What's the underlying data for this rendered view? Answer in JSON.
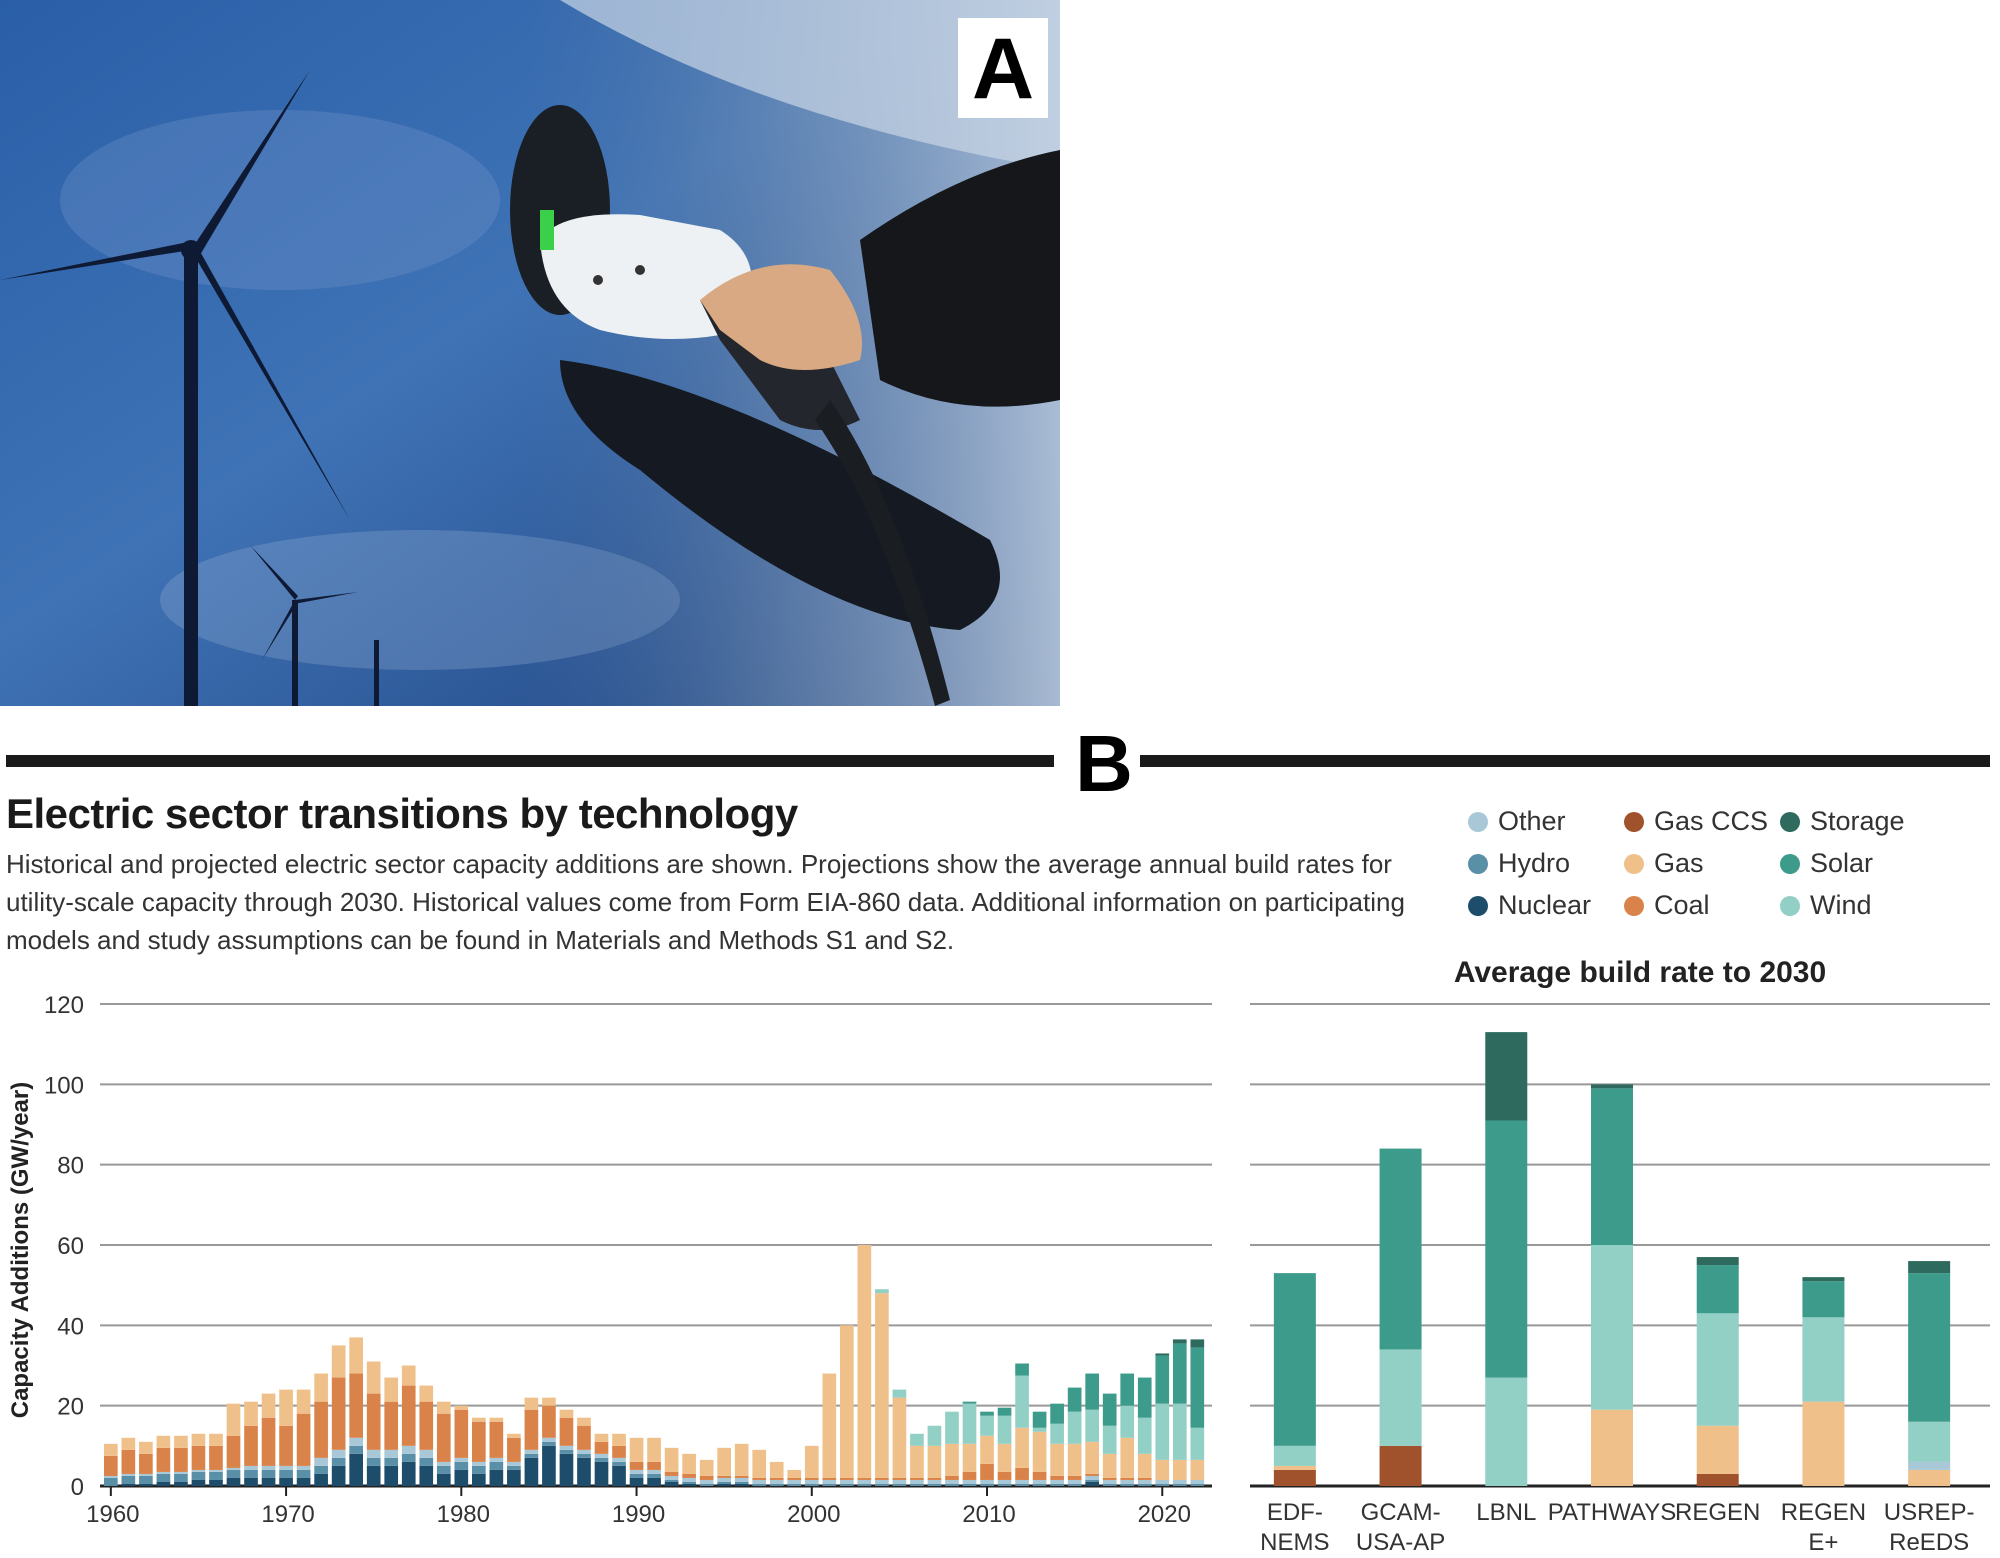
{
  "panel_a": {
    "label": "A",
    "description_icon": "ev-charging-wind-turbines-photo"
  },
  "panel_b": {
    "label": "B",
    "title": "Electric sector transitions by technology",
    "subtitle": "Historical and projected electric sector capacity additions are shown. Projections show the average annual build rates for utility-scale capacity through 2030. Historical values come from Form EIA-860 data. Additional information on participating models and study assumptions can be found in Materials and Methods S1 and S2.",
    "legend": [
      {
        "name": "Other",
        "color": "#a8c8d8"
      },
      {
        "name": "Gas CCS",
        "color": "#a0522d"
      },
      {
        "name": "Storage",
        "color": "#2e6b5e"
      },
      {
        "name": "Hydro",
        "color": "#5a8fa8"
      },
      {
        "name": "Gas",
        "color": "#f0c08a"
      },
      {
        "name": "Solar",
        "color": "#3d9b8c"
      },
      {
        "name": "Nuclear",
        "color": "#1e4d6b"
      },
      {
        "name": "Coal",
        "color": "#d9834a"
      },
      {
        "name": "Wind",
        "color": "#92cfc5"
      }
    ]
  },
  "chart_data": [
    {
      "type": "bar",
      "stacked": true,
      "title": "",
      "xlabel": "",
      "ylabel": "Capacity Additions (GW/year)",
      "ylim": [
        0,
        120
      ],
      "yticks": [
        0,
        20,
        40,
        60,
        80,
        100,
        120
      ],
      "xticks": [
        "1960",
        "1970",
        "1980",
        "1990",
        "2000",
        "2010",
        "2020"
      ],
      "x": [
        1960,
        1961,
        1962,
        1963,
        1964,
        1965,
        1966,
        1967,
        1968,
        1969,
        1970,
        1971,
        1972,
        1973,
        1974,
        1975,
        1976,
        1977,
        1978,
        1979,
        1980,
        1981,
        1982,
        1983,
        1984,
        1985,
        1986,
        1987,
        1988,
        1989,
        1990,
        1991,
        1992,
        1993,
        1994,
        1995,
        1996,
        1997,
        1998,
        1999,
        2000,
        2001,
        2002,
        2003,
        2004,
        2005,
        2006,
        2007,
        2008,
        2009,
        2010,
        2011,
        2012,
        2013,
        2014,
        2015,
        2016,
        2017,
        2018,
        2019,
        2020,
        2021,
        2022
      ],
      "series": [
        {
          "name": "Nuclear",
          "values": [
            0,
            0.5,
            0.5,
            1,
            1,
            1.5,
            1.5,
            2,
            2,
            2,
            2,
            2,
            3,
            5,
            8,
            5,
            5,
            6,
            5,
            3,
            4,
            3,
            4,
            4,
            7,
            10,
            8,
            7,
            6,
            5,
            2,
            2,
            1,
            0.5,
            0,
            0.5,
            0.5,
            0,
            0,
            0,
            0,
            0,
            0,
            0,
            0,
            0,
            0,
            0,
            0,
            0,
            0,
            0,
            0,
            0,
            0,
            0,
            1,
            0,
            0,
            0,
            0,
            0,
            0
          ]
        },
        {
          "name": "Hydro",
          "values": [
            2,
            2,
            2,
            2,
            2,
            2,
            2,
            2,
            2,
            2,
            2,
            2,
            2,
            2,
            2,
            2,
            2,
            2,
            2,
            2,
            2,
            2,
            2,
            1,
            1,
            1,
            1,
            1,
            1,
            1,
            1,
            1,
            0.5,
            0.5,
            0.5,
            0.5,
            0.5,
            0.5,
            0.5,
            0.5,
            0.5,
            0.5,
            0.5,
            0.5,
            0.5,
            0.5,
            0.5,
            0.5,
            0.5,
            0.5,
            0.5,
            0.5,
            0.5,
            0.5,
            0.5,
            0.5,
            0.5,
            0.5,
            0.5,
            0.5,
            0.5,
            0.5,
            0.5
          ]
        },
        {
          "name": "Other",
          "values": [
            0.5,
            0.5,
            0.5,
            0.5,
            0.5,
            0.5,
            0.5,
            0.5,
            1,
            1,
            1,
            1,
            2,
            2,
            2,
            2,
            2,
            2,
            2,
            1,
            1,
            1,
            1,
            1,
            1,
            1,
            1,
            1,
            1,
            1,
            1,
            1,
            1,
            1,
            1,
            1,
            1,
            1,
            1,
            1,
            1,
            1,
            1,
            1,
            1,
            1,
            1,
            1,
            1,
            1,
            1,
            1,
            1,
            1,
            1,
            1,
            1,
            1,
            1,
            1,
            1,
            1,
            1
          ]
        },
        {
          "name": "Coal",
          "values": [
            5,
            6,
            5,
            6,
            6,
            6,
            6,
            8,
            10,
            12,
            10,
            13,
            14,
            18,
            16,
            14,
            12,
            15,
            12,
            12,
            12,
            10,
            9,
            6,
            10,
            8,
            7,
            6,
            3,
            3,
            2,
            2,
            1,
            1,
            1,
            0.5,
            0.5,
            0.5,
            0.5,
            0.5,
            0.5,
            0.5,
            0.5,
            0.5,
            0.5,
            0.5,
            0.5,
            0.5,
            1,
            2,
            4,
            2,
            3,
            2,
            1,
            1,
            0.5,
            0.5,
            0.5,
            0.5,
            0,
            0,
            0
          ]
        },
        {
          "name": "Gas",
          "values": [
            3,
            3,
            3,
            3,
            3,
            3,
            3,
            8,
            6,
            6,
            9,
            6,
            7,
            8,
            9,
            8,
            6,
            5,
            4,
            3,
            1,
            1,
            1,
            1,
            3,
            2,
            2,
            2,
            2,
            3,
            6,
            6,
            6,
            5,
            4,
            7,
            8,
            7,
            4,
            2,
            8,
            26,
            38,
            58,
            46,
            20,
            8,
            8,
            8,
            7,
            7,
            7,
            10,
            10,
            8,
            8,
            8,
            6,
            10,
            6,
            5,
            5,
            5
          ]
        },
        {
          "name": "Gas CCS",
          "values": [
            0,
            0,
            0,
            0,
            0,
            0,
            0,
            0,
            0,
            0,
            0,
            0,
            0,
            0,
            0,
            0,
            0,
            0,
            0,
            0,
            0,
            0,
            0,
            0,
            0,
            0,
            0,
            0,
            0,
            0,
            0,
            0,
            0,
            0,
            0,
            0,
            0,
            0,
            0,
            0,
            0,
            0,
            0,
            0,
            0,
            0,
            0,
            0,
            0,
            0,
            0,
            0,
            0,
            0,
            0,
            0,
            0,
            0,
            0,
            0,
            0,
            0,
            0
          ]
        },
        {
          "name": "Wind",
          "values": [
            0,
            0,
            0,
            0,
            0,
            0,
            0,
            0,
            0,
            0,
            0,
            0,
            0,
            0,
            0,
            0,
            0,
            0,
            0,
            0,
            0,
            0,
            0,
            0,
            0,
            0,
            0,
            0,
            0,
            0,
            0,
            0,
            0,
            0,
            0,
            0,
            0,
            0,
            0,
            0,
            0,
            0,
            0,
            0,
            1,
            2,
            3,
            5,
            8,
            10,
            5,
            7,
            13,
            1,
            5,
            8,
            8,
            7,
            8,
            9,
            14,
            14,
            8
          ]
        },
        {
          "name": "Solar",
          "values": [
            0,
            0,
            0,
            0,
            0,
            0,
            0,
            0,
            0,
            0,
            0,
            0,
            0,
            0,
            0,
            0,
            0,
            0,
            0,
            0,
            0,
            0,
            0,
            0,
            0,
            0,
            0,
            0,
            0,
            0,
            0,
            0,
            0,
            0,
            0,
            0,
            0,
            0,
            0,
            0,
            0,
            0,
            0,
            0,
            0,
            0,
            0,
            0,
            0,
            0.5,
            1,
            2,
            3,
            4,
            5,
            6,
            9,
            8,
            8,
            10,
            12,
            15,
            20
          ]
        },
        {
          "name": "Storage",
          "values": [
            0,
            0,
            0,
            0,
            0,
            0,
            0,
            0,
            0,
            0,
            0,
            0,
            0,
            0,
            0,
            0,
            0,
            0,
            0,
            0,
            0,
            0,
            0,
            0,
            0,
            0,
            0,
            0,
            0,
            0,
            0,
            0,
            0,
            0,
            0,
            0,
            0,
            0,
            0,
            0,
            0,
            0,
            0,
            0,
            0,
            0,
            0,
            0,
            0,
            0,
            0,
            0,
            0,
            0,
            0,
            0,
            0,
            0,
            0,
            0,
            0.5,
            1,
            2
          ]
        }
      ]
    },
    {
      "type": "bar",
      "stacked": true,
      "title": "Average build rate to 2030",
      "ylim": [
        0,
        120
      ],
      "categories": [
        "EDF-\nNEMS",
        "GCAM-\nUSA-AP",
        "LBNL",
        "PATHWAYS",
        "REGEN",
        "REGEN\nE+",
        "USREP-\nReEDS"
      ],
      "series": [
        {
          "name": "Coal",
          "values": [
            0,
            0,
            0,
            0,
            0,
            0,
            0
          ]
        },
        {
          "name": "Gas CCS",
          "values": [
            4,
            10,
            0,
            0,
            3,
            0,
            0
          ]
        },
        {
          "name": "Gas",
          "values": [
            1,
            0,
            0,
            19,
            12,
            21,
            4
          ]
        },
        {
          "name": "Other",
          "values": [
            0,
            0,
            0,
            0,
            0,
            0,
            2
          ]
        },
        {
          "name": "Wind",
          "values": [
            5,
            24,
            27,
            41,
            28,
            21,
            10
          ]
        },
        {
          "name": "Solar",
          "values": [
            43,
            50,
            64,
            39,
            12,
            9,
            37
          ]
        },
        {
          "name": "Storage",
          "values": [
            0,
            0,
            22,
            1,
            2,
            1,
            3
          ]
        }
      ]
    }
  ]
}
